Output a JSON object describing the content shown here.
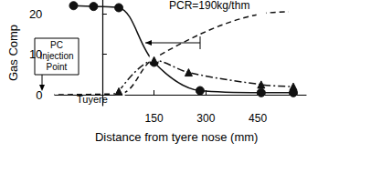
{
  "chart_data": {
    "type": "line",
    "title": "PCR=190kg/thm",
    "x_label": "Distance from tyere nose (mm)",
    "y_label": "Gas Comp",
    "annotations": [
      "PC Injection Point",
      "Tuyere"
    ],
    "xlim": [
      -160,
      590
    ],
    "xticks": [
      150,
      300,
      450
    ],
    "ylim": [
      -2.7,
      23.4
    ],
    "yticks": [
      0,
      10,
      20
    ],
    "grid": false,
    "series": [
      {
        "color": "#111111",
        "marker": "filled_circle",
        "line_style": "solid",
        "x": [
          -83,
          -25,
          48,
          150,
          283,
          460,
          553
        ],
        "values": [
          22,
          21.8,
          21.5,
          8,
          1,
          0.5,
          0.5
        ]
      },
      {
        "color": "#111111",
        "marker": "open_circle",
        "line_style": "dashed",
        "x": [
          -153,
          52,
          150,
          460,
          553
        ],
        "values": [
          0,
          0.3,
          9,
          20,
          20.5
        ]
      },
      {
        "color": "#111111",
        "marker": "triangle",
        "line_style": "dashdot",
        "x": [
          48,
          150,
          250,
          460,
          553
        ],
        "values": [
          0.8,
          8.5,
          5.5,
          2.5,
          2
        ]
      }
    ]
  }
}
